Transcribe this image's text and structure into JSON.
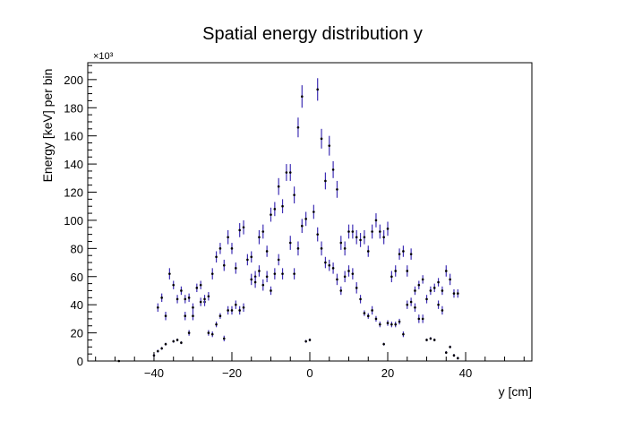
{
  "chart_data": {
    "type": "scatter",
    "title": "Spatial energy distribution y",
    "xlabel": "y [cm]",
    "ylabel": "Energy [keV] per bin",
    "y_multiplier_label": "×10³",
    "xlim": [
      -57,
      57
    ],
    "ylim": [
      0,
      212
    ],
    "x_ticks": [
      -40,
      -20,
      0,
      20,
      40
    ],
    "y_ticks": [
      0,
      20,
      40,
      60,
      80,
      100,
      120,
      140,
      160,
      180,
      200
    ],
    "x_tick_labels": [
      "−40",
      "−20",
      "0",
      "20",
      "40"
    ],
    "y_tick_labels": [
      "0",
      "20",
      "40",
      "60",
      "80",
      "100",
      "120",
      "140",
      "160",
      "180",
      "200"
    ],
    "grid": false,
    "legend": "none",
    "marker_color": "#3f2fb5",
    "error_bar_color": "#3f2fb5",
    "series": [
      {
        "points": [
          [
            -49,
            0,
            0
          ],
          [
            -40,
            4,
            1
          ],
          [
            -39,
            7,
            1
          ],
          [
            -38,
            9,
            1
          ],
          [
            -37,
            12,
            1
          ],
          [
            -39,
            38,
            3
          ],
          [
            -38,
            45,
            3
          ],
          [
            -37,
            32,
            3
          ],
          [
            -36,
            62,
            4
          ],
          [
            -35,
            54,
            3
          ],
          [
            -34,
            44,
            3
          ],
          [
            -33,
            50,
            3
          ],
          [
            -32,
            44,
            3
          ],
          [
            -31,
            45,
            3
          ],
          [
            -30,
            38,
            3
          ],
          [
            -29,
            52,
            3
          ],
          [
            -28,
            54,
            3
          ],
          [
            -27,
            42,
            3
          ],
          [
            -26,
            46,
            3
          ],
          [
            -25,
            62,
            4
          ],
          [
            -24,
            74,
            4
          ],
          [
            -23,
            80,
            4
          ],
          [
            -22,
            68,
            4
          ],
          [
            -21,
            88,
            5
          ],
          [
            -20,
            80,
            4
          ],
          [
            -19,
            66,
            4
          ],
          [
            -18,
            93,
            5
          ],
          [
            -17,
            95,
            5
          ],
          [
            -16,
            72,
            4
          ],
          [
            -15,
            74,
            4
          ],
          [
            -14,
            60,
            4
          ],
          [
            -13,
            88,
            5
          ],
          [
            -12,
            92,
            5
          ],
          [
            -11,
            78,
            4
          ],
          [
            -10,
            104,
            5
          ],
          [
            -9,
            108,
            5
          ],
          [
            -8,
            124,
            6
          ],
          [
            -7,
            110,
            5
          ],
          [
            -6,
            134,
            6
          ],
          [
            -5,
            134,
            6
          ],
          [
            -4,
            118,
            6
          ],
          [
            -3,
            166,
            7
          ],
          [
            -2,
            188,
            8
          ],
          [
            -1,
            101,
            5
          ],
          [
            1,
            106,
            5
          ],
          [
            2,
            193,
            8
          ],
          [
            3,
            158,
            7
          ],
          [
            4,
            128,
            6
          ],
          [
            5,
            153,
            7
          ],
          [
            6,
            136,
            6
          ],
          [
            7,
            122,
            6
          ],
          [
            8,
            84,
            5
          ],
          [
            9,
            80,
            5
          ],
          [
            10,
            92,
            5
          ],
          [
            11,
            92,
            5
          ],
          [
            12,
            88,
            5
          ],
          [
            13,
            86,
            5
          ],
          [
            14,
            88,
            5
          ],
          [
            15,
            78,
            4
          ],
          [
            16,
            92,
            5
          ],
          [
            17,
            100,
            5
          ],
          [
            18,
            92,
            5
          ],
          [
            19,
            88,
            5
          ],
          [
            20,
            94,
            5
          ],
          [
            21,
            60,
            4
          ],
          [
            22,
            64,
            4
          ],
          [
            23,
            76,
            4
          ],
          [
            24,
            78,
            4
          ],
          [
            25,
            64,
            4
          ],
          [
            26,
            76,
            4
          ],
          [
            27,
            50,
            3
          ],
          [
            28,
            54,
            3
          ],
          [
            29,
            58,
            3
          ],
          [
            30,
            44,
            3
          ],
          [
            31,
            50,
            3
          ],
          [
            32,
            52,
            3
          ],
          [
            33,
            56,
            3
          ],
          [
            34,
            50,
            3
          ],
          [
            35,
            64,
            4
          ],
          [
            36,
            58,
            4
          ],
          [
            37,
            48,
            3
          ],
          [
            38,
            48,
            3
          ],
          [
            -35,
            14,
            1
          ],
          [
            -34,
            15,
            1
          ],
          [
            -33,
            13,
            1
          ],
          [
            -32,
            32,
            3
          ],
          [
            -31,
            20,
            2
          ],
          [
            -30,
            32,
            3
          ],
          [
            -28,
            42,
            3
          ],
          [
            -27,
            44,
            3
          ],
          [
            -26,
            20,
            2
          ],
          [
            -25,
            19,
            2
          ],
          [
            -24,
            26,
            2
          ],
          [
            -23,
            32,
            2
          ],
          [
            -22,
            16,
            2
          ],
          [
            -21,
            36,
            3
          ],
          [
            -20,
            36,
            3
          ],
          [
            -19,
            40,
            3
          ],
          [
            -18,
            36,
            3
          ],
          [
            -17,
            38,
            3
          ],
          [
            -15,
            58,
            4
          ],
          [
            -14,
            56,
            4
          ],
          [
            -13,
            64,
            4
          ],
          [
            -12,
            54,
            4
          ],
          [
            -11,
            60,
            4
          ],
          [
            -10,
            50,
            3
          ],
          [
            -9,
            62,
            4
          ],
          [
            -8,
            72,
            4
          ],
          [
            -7,
            62,
            4
          ],
          [
            -5,
            84,
            5
          ],
          [
            -4,
            62,
            4
          ],
          [
            -3,
            80,
            5
          ],
          [
            -2,
            96,
            5
          ],
          [
            -1,
            14,
            1
          ],
          [
            0,
            15,
            1
          ],
          [
            2,
            90,
            5
          ],
          [
            3,
            80,
            5
          ],
          [
            4,
            70,
            4
          ],
          [
            5,
            68,
            4
          ],
          [
            6,
            66,
            4
          ],
          [
            7,
            58,
            4
          ],
          [
            8,
            50,
            3
          ],
          [
            9,
            60,
            4
          ],
          [
            10,
            64,
            4
          ],
          [
            11,
            62,
            4
          ],
          [
            12,
            52,
            4
          ],
          [
            13,
            44,
            3
          ],
          [
            14,
            34,
            2
          ],
          [
            15,
            32,
            2
          ],
          [
            16,
            36,
            3
          ],
          [
            17,
            30,
            2
          ],
          [
            18,
            26,
            2
          ],
          [
            19,
            12,
            1
          ],
          [
            20,
            27,
            2
          ],
          [
            21,
            26,
            2
          ],
          [
            22,
            26,
            2
          ],
          [
            23,
            28,
            2
          ],
          [
            24,
            19,
            2
          ],
          [
            25,
            40,
            3
          ],
          [
            26,
            42,
            3
          ],
          [
            27,
            38,
            3
          ],
          [
            28,
            30,
            3
          ],
          [
            29,
            30,
            3
          ],
          [
            30,
            15,
            1
          ],
          [
            31,
            16,
            1
          ],
          [
            32,
            15,
            1
          ],
          [
            33,
            40,
            3
          ],
          [
            34,
            36,
            3
          ],
          [
            35,
            6,
            1
          ],
          [
            36,
            10,
            1
          ],
          [
            37,
            4,
            1
          ],
          [
            38,
            2,
            1
          ]
        ]
      }
    ]
  }
}
